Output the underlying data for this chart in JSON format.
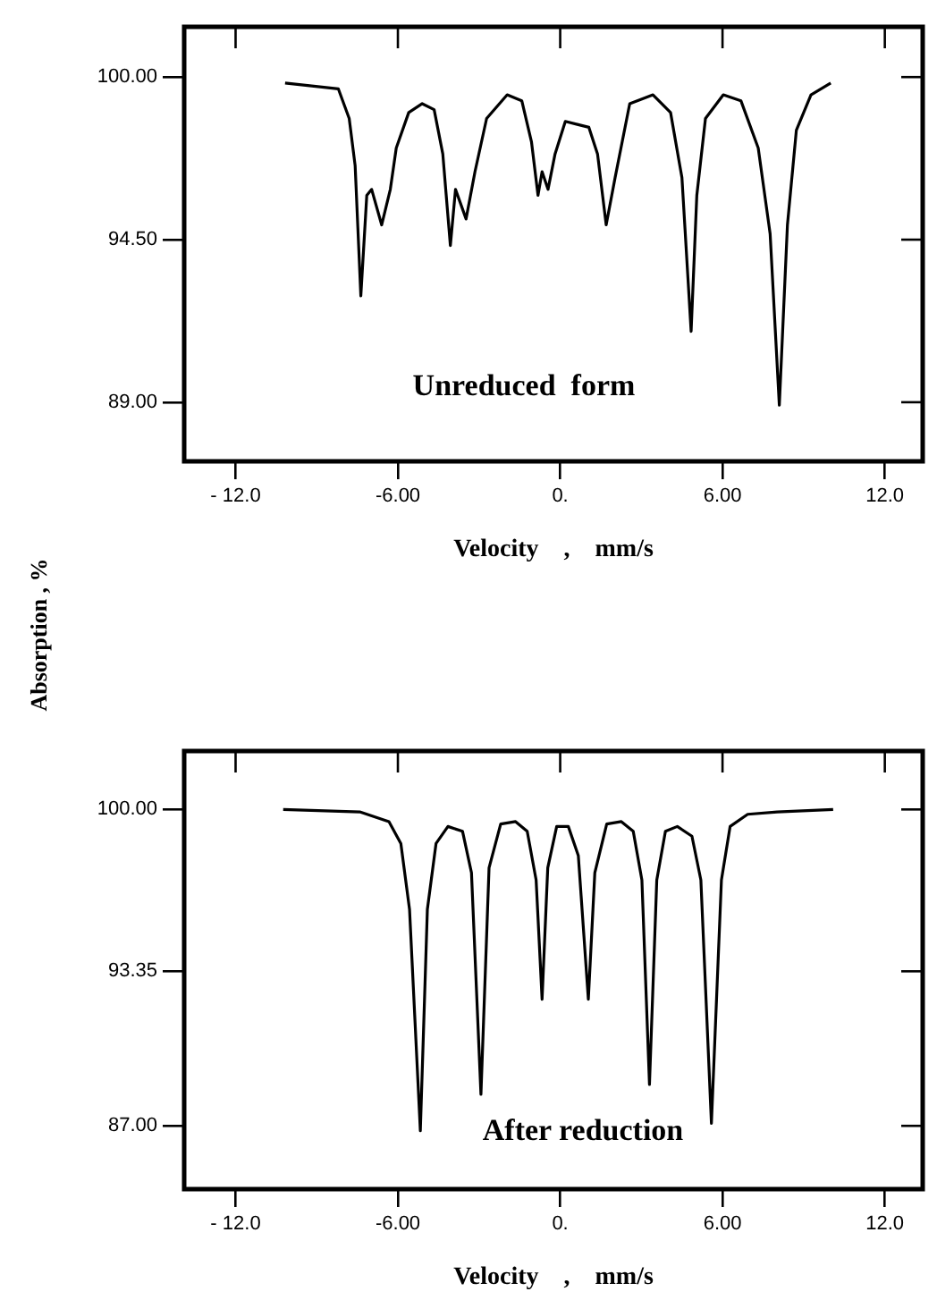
{
  "chart_data": [
    {
      "type": "line",
      "xlabel": "Velocity    ,    mm/s",
      "ylabel": "Absorption   ,  %",
      "annotations": [
        "Unreduced  form"
      ],
      "x": [
        -10.17,
        -8.2,
        -7.8,
        -7.58,
        -7.37,
        -7.15,
        -6.97,
        -6.6,
        -6.28,
        -6.06,
        -5.6,
        -5.1,
        -4.66,
        -4.34,
        -4.06,
        -3.87,
        -3.48,
        -3.15,
        -2.72,
        -1.96,
        -1.42,
        -1.06,
        -0.82,
        -0.67,
        -0.45,
        -0.19,
        0.19,
        0.63,
        1.06,
        1.38,
        1.7,
        2.03,
        2.57,
        3.43,
        4.08,
        4.5,
        4.84,
        5.05,
        5.37,
        6.03,
        6.68,
        7.32,
        7.76,
        8.1,
        8.4,
        8.73,
        9.27,
        10.0
      ],
      "series": [
        {
          "color": "#000000",
          "values": [
            99.8,
            99.6,
            98.6,
            97.0,
            92.6,
            96.0,
            96.2,
            95.0,
            96.2,
            97.6,
            98.8,
            99.1,
            98.9,
            97.4,
            94.3,
            96.2,
            95.2,
            96.8,
            98.6,
            99.4,
            99.2,
            97.8,
            96.0,
            96.8,
            96.2,
            97.4,
            98.5,
            98.4,
            98.3,
            97.4,
            95.0,
            96.6,
            99.1,
            99.4,
            98.8,
            96.6,
            91.4,
            96.0,
            98.6,
            99.4,
            99.2,
            97.6,
            94.7,
            88.9,
            95.0,
            98.2,
            99.4,
            99.8
          ]
        }
      ],
      "xlim": [
        -13.9,
        13.4
      ],
      "xticks": [
        {
          "value": -12,
          "label": "- 12.0"
        },
        {
          "value": -6,
          "label": "-6.00"
        },
        {
          "value": 0,
          "label": "0."
        },
        {
          "value": 6,
          "label": "6.00"
        },
        {
          "value": 12,
          "label": "12.0"
        }
      ],
      "ylim": [
        87.0,
        101.7
      ],
      "yticks": [
        {
          "value": 89,
          "label": "89.00"
        },
        {
          "value": 94.5,
          "label": "94.50"
        },
        {
          "value": 100,
          "label": "100.00"
        }
      ],
      "grid": false,
      "legend": false,
      "marker": "none",
      "line_style": "solid"
    },
    {
      "type": "line",
      "xlabel": "Velocity    ,    mm/s",
      "annotations": [
        "After reduction"
      ],
      "x": [
        -10.24,
        -7.41,
        -6.33,
        -5.89,
        -5.57,
        -5.17,
        -4.91,
        -4.59,
        -4.15,
        -3.61,
        -3.28,
        -2.93,
        -2.63,
        -2.2,
        -1.65,
        -1.22,
        -0.89,
        -0.67,
        -0.46,
        -0.13,
        0.3,
        0.67,
        1.04,
        1.28,
        1.72,
        2.26,
        2.7,
        3.02,
        3.3,
        3.57,
        3.89,
        4.33,
        4.87,
        5.2,
        5.59,
        5.96,
        6.28,
        6.93,
        8.02,
        10.09
      ],
      "series": [
        {
          "color": "#000000",
          "values": [
            100.0,
            99.9,
            99.5,
            98.6,
            95.9,
            86.8,
            95.9,
            98.6,
            99.3,
            99.1,
            97.4,
            88.3,
            97.6,
            99.4,
            99.5,
            99.1,
            97.1,
            92.2,
            97.6,
            99.3,
            99.3,
            98.1,
            92.2,
            97.4,
            99.4,
            99.5,
            99.1,
            97.1,
            88.7,
            97.1,
            99.1,
            99.3,
            98.9,
            97.1,
            87.1,
            97.1,
            99.3,
            99.8,
            99.9,
            100.0
          ]
        }
      ],
      "xlim": [
        -13.9,
        13.4
      ],
      "xticks": [
        {
          "value": -12,
          "label": "- 12.0"
        },
        {
          "value": -6,
          "label": "-6.00"
        },
        {
          "value": 0,
          "label": "0."
        },
        {
          "value": 6,
          "label": "6.00"
        },
        {
          "value": 12,
          "label": "12.0"
        }
      ],
      "ylim": [
        84.4,
        102.4
      ],
      "yticks": [
        {
          "value": 87,
          "label": "87.00"
        },
        {
          "value": 93.35,
          "label": "93.35"
        },
        {
          "value": 100,
          "label": "100.00"
        }
      ],
      "grid": false,
      "legend": false,
      "marker": "none",
      "line_style": "solid"
    }
  ]
}
